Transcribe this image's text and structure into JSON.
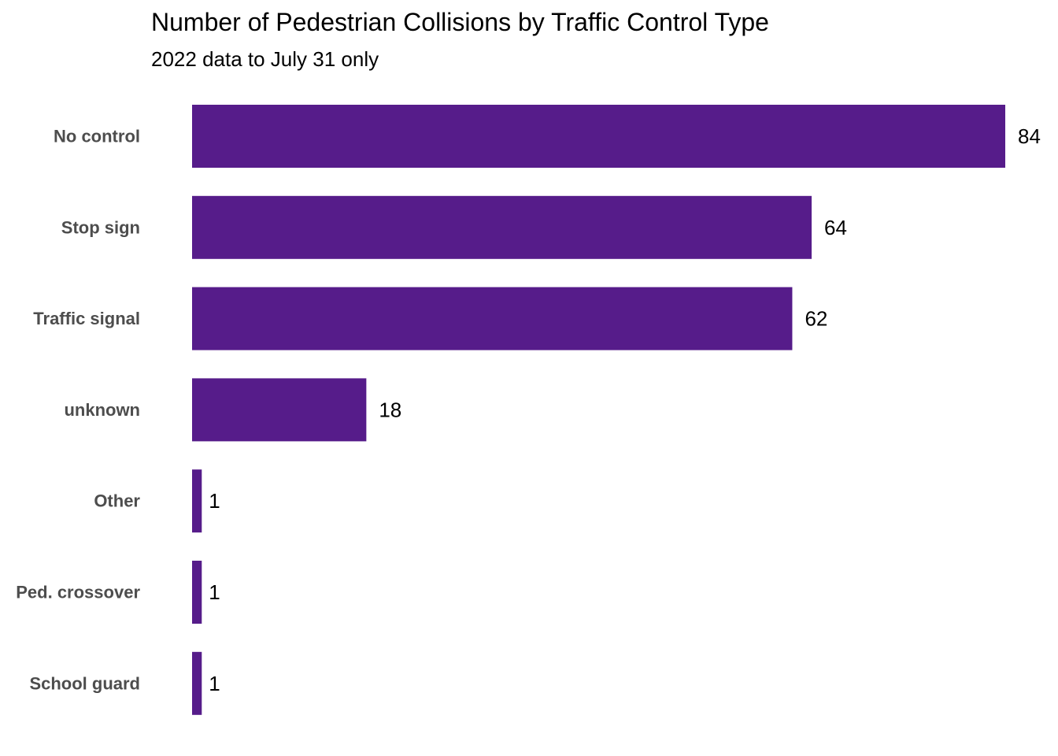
{
  "chart_data": {
    "type": "bar",
    "orientation": "horizontal",
    "title": "Number of Pedestrian Collisions by Traffic Control Type",
    "subtitle": "2022 data to July 31 only",
    "xlabel": "",
    "ylabel": "",
    "categories": [
      "No control",
      "Stop sign",
      "Traffic signal",
      "unknown",
      "Other",
      "Ped. crossover",
      "School guard"
    ],
    "values": [
      84,
      64,
      62,
      18,
      1,
      1,
      1
    ],
    "xlim": [
      0,
      84
    ],
    "grid": false,
    "legend": "none",
    "bar_color": "#561C8A",
    "data_labels": true
  }
}
